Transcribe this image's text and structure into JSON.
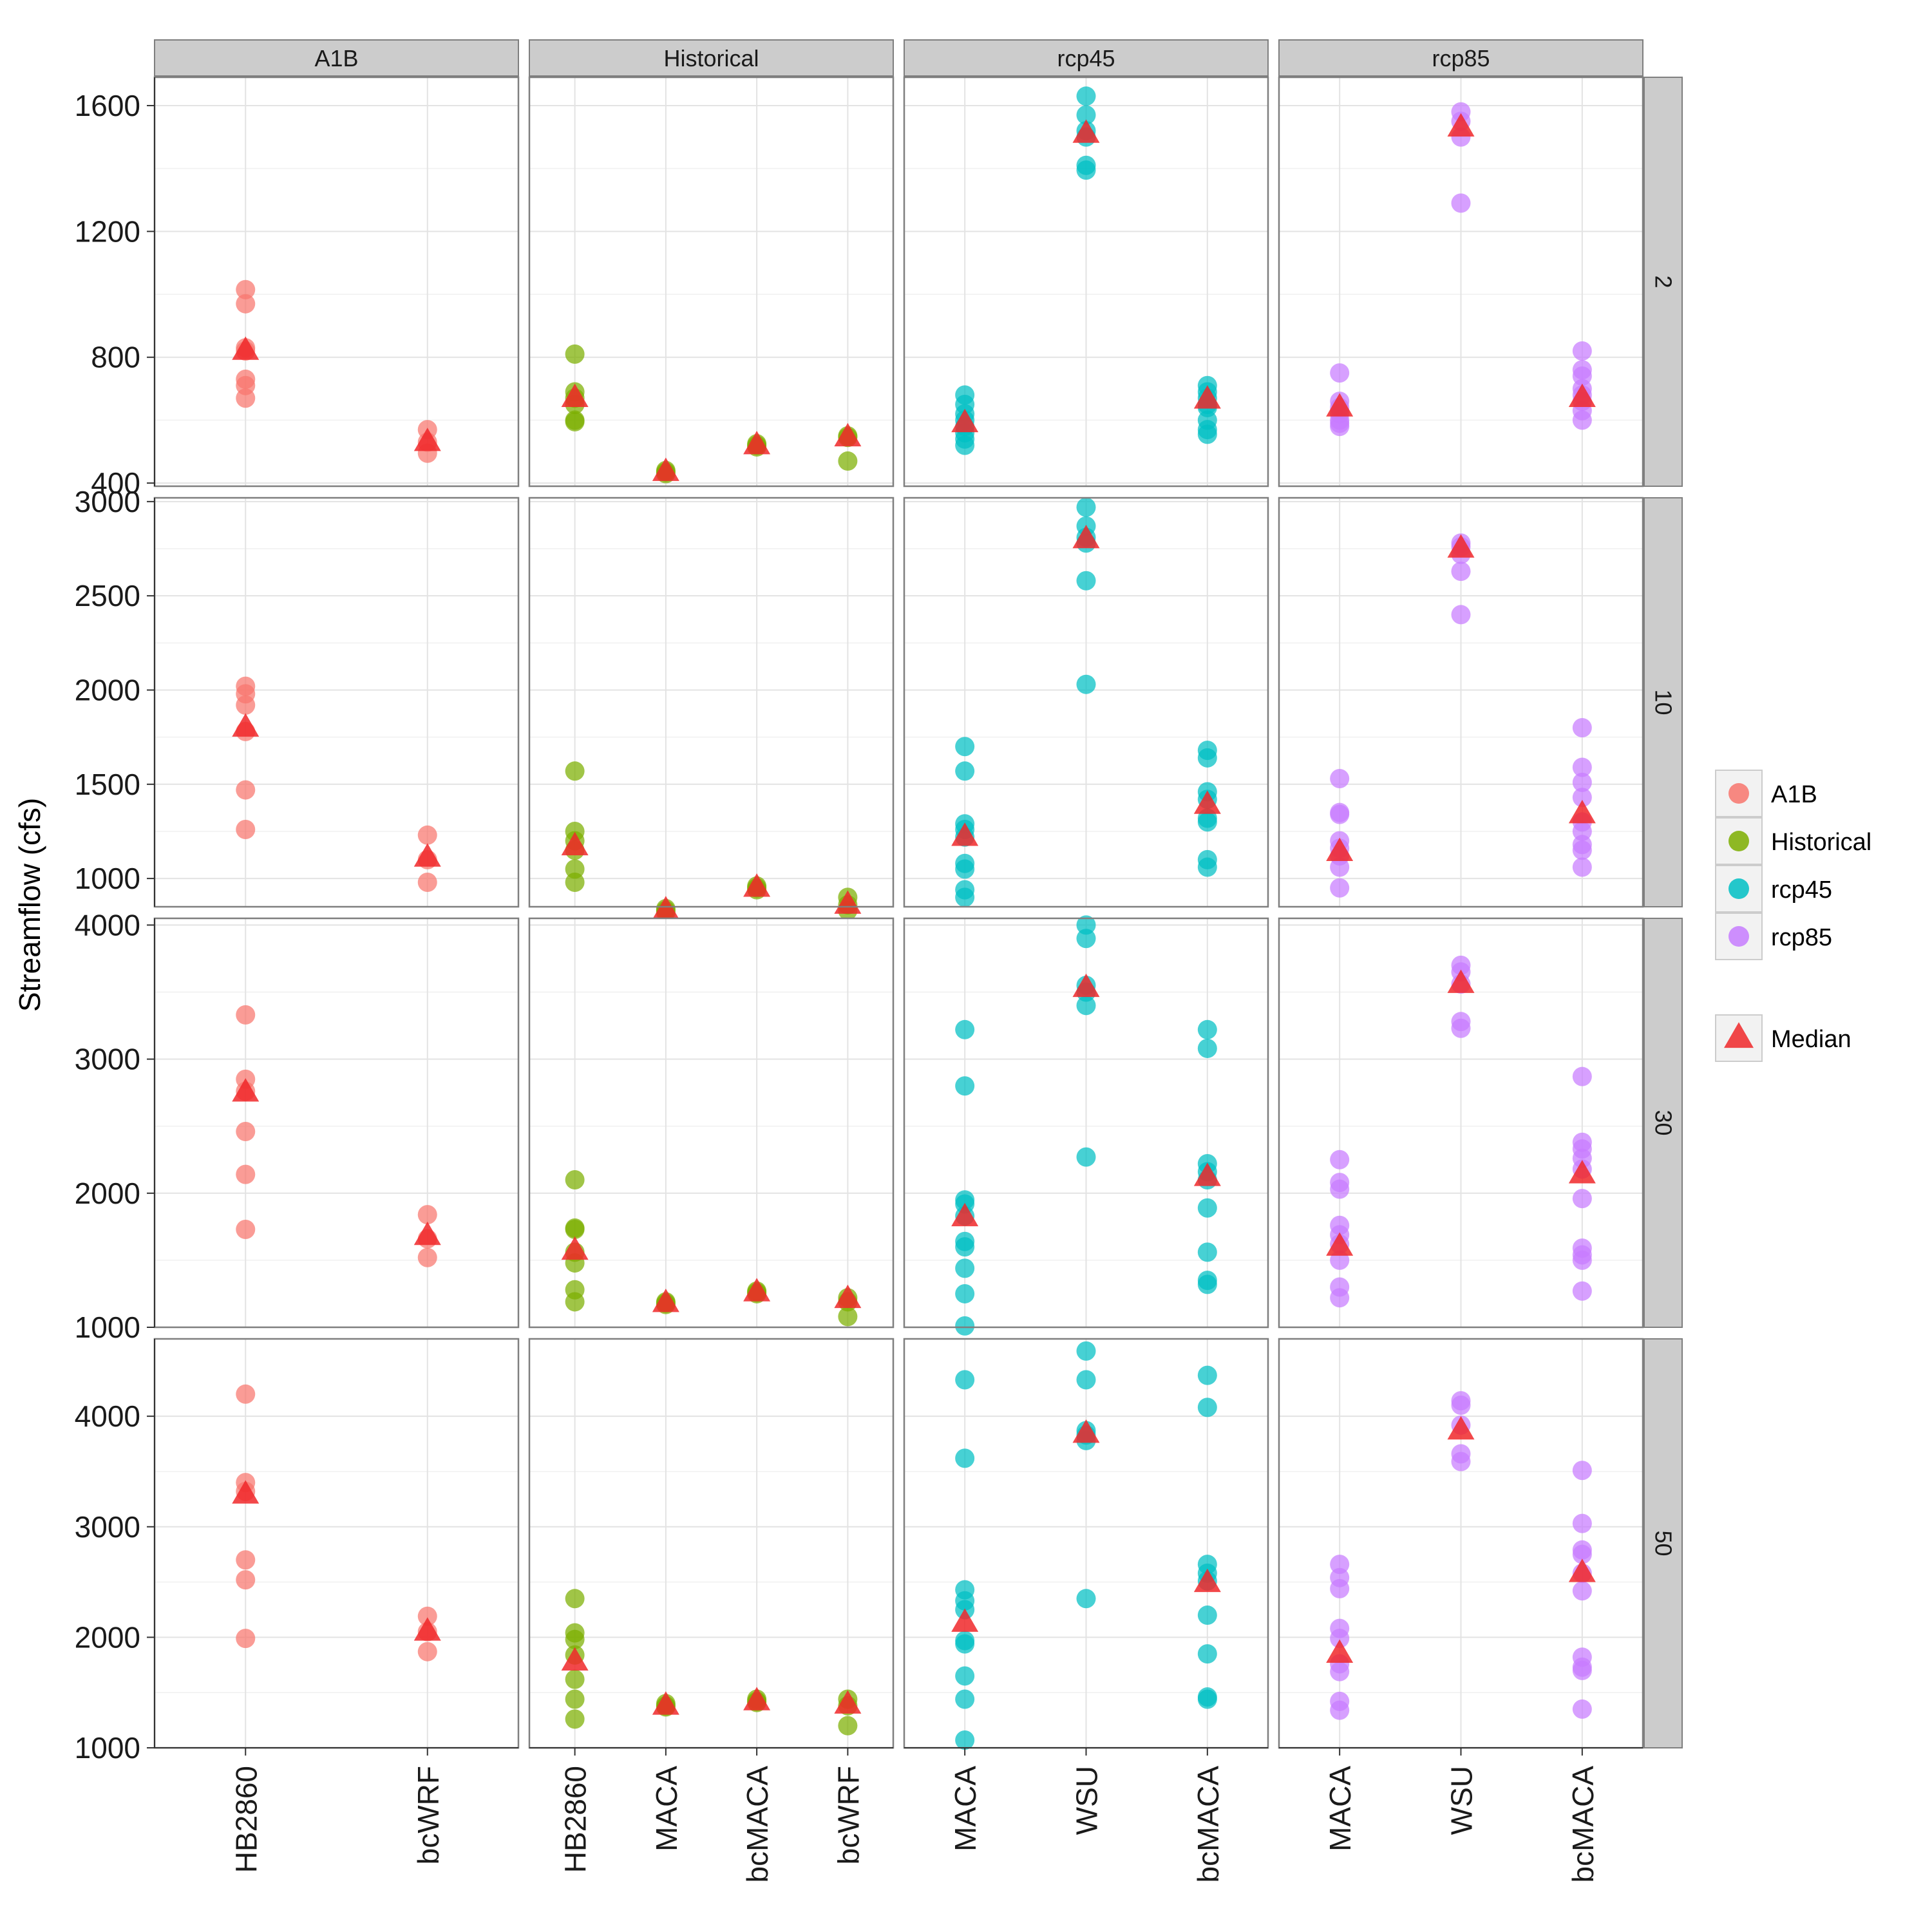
{
  "chart_data": {
    "type": "scatter",
    "ylabel": "Streamflow (cfs)",
    "column_facets": [
      "A1B",
      "Historical",
      "rcp45",
      "rcp85"
    ],
    "row_facets": [
      "2",
      "10",
      "30",
      "50"
    ],
    "column_categories": [
      [
        "HB2860",
        "bcWRF"
      ],
      [
        "HB2860",
        "MACA",
        "bcMACA",
        "bcWRF"
      ],
      [
        "MACA",
        "WSU",
        "bcMACA"
      ],
      [
        "MACA",
        "WSU",
        "bcMACA"
      ]
    ],
    "row_ylim": [
      [
        390,
        1690
      ],
      [
        850,
        3020
      ],
      [
        1000,
        4050
      ],
      [
        1000,
        4700
      ]
    ],
    "row_yticks": [
      [
        400,
        800,
        1200,
        1600
      ],
      [
        1000,
        1500,
        2000,
        2500,
        3000
      ],
      [
        1000,
        2000,
        3000,
        4000
      ],
      [
        1000,
        2000,
        3000,
        4000
      ]
    ],
    "grid": true,
    "legend": {
      "position": "right",
      "series": [
        {
          "name": "A1B",
          "color": "#F8766D"
        },
        {
          "name": "Historical",
          "color": "#7CAE00"
        },
        {
          "name": "rcp45",
          "color": "#00BFC4"
        },
        {
          "name": "rcp85",
          "color": "#C77CFF"
        }
      ],
      "median": {
        "name": "Median",
        "color": "#F0282A",
        "shape": "triangle"
      }
    },
    "panels": [
      {
        "row": "2",
        "col": "A1B",
        "points": {
          "HB2860": [
            1015,
            970,
            830,
            820,
            730,
            710,
            670
          ],
          "bcWRF": [
            570,
            530,
            495
          ]
        },
        "median": {
          "HB2860": 820,
          "bcWRF": 530
        }
      },
      {
        "row": "2",
        "col": "Historical",
        "points": {
          "HB2860": [
            810,
            690,
            670,
            650,
            600,
            595
          ],
          "MACA": [
            440,
            435,
            430
          ],
          "bcMACA": [
            525,
            520,
            515
          ],
          "bcWRF": [
            550,
            545,
            470
          ]
        },
        "median": {
          "HB2860": 670,
          "MACA": 435,
          "bcMACA": 520,
          "bcWRF": 545
        }
      },
      {
        "row": "2",
        "col": "rcp45",
        "points": {
          "MACA": [
            680,
            650,
            620,
            600,
            580,
            560,
            540,
            520
          ],
          "WSU": [
            1630,
            1570,
            1520,
            1500,
            1410,
            1395
          ],
          "bcMACA": [
            710,
            690,
            670,
            650,
            640,
            600,
            570,
            555
          ]
        },
        "median": {
          "MACA": 590,
          "WSU": 1510,
          "bcMACA": 665
        }
      },
      {
        "row": "2",
        "col": "rcp85",
        "points": {
          "MACA": [
            750,
            660,
            640,
            620,
            600,
            590,
            580
          ],
          "WSU": [
            1580,
            1550,
            1500,
            1290
          ],
          "bcMACA": [
            820,
            760,
            740,
            700,
            680,
            660,
            630,
            600
          ]
        },
        "median": {
          "MACA": 640,
          "WSU": 1530,
          "bcMACA": 670
        }
      },
      {
        "row": "10",
        "col": "A1B",
        "points": {
          "HB2860": [
            2020,
            1980,
            1920,
            1780,
            1470,
            1260
          ],
          "bcWRF": [
            1230,
            1100,
            980
          ]
        },
        "median": {
          "HB2860": 1800,
          "bcWRF": 1110
        }
      },
      {
        "row": "10",
        "col": "Historical",
        "points": {
          "HB2860": [
            1570,
            1250,
            1200,
            1150,
            1050,
            980
          ],
          "MACA": [
            840,
            830,
            820
          ],
          "bcMACA": [
            960,
            950,
            940
          ],
          "bcWRF": [
            900,
            860,
            830
          ]
        },
        "median": {
          "HB2860": 1170,
          "MACA": 830,
          "bcMACA": 950,
          "bcWRF": 860
        }
      },
      {
        "row": "10",
        "col": "rcp45",
        "points": {
          "MACA": [
            1700,
            1570,
            1290,
            1260,
            1220,
            1080,
            1050,
            940,
            900
          ],
          "WSU": [
            2970,
            2870,
            2810,
            2780,
            2580,
            2030
          ],
          "bcMACA": [
            1680,
            1640,
            1460,
            1420,
            1320,
            1300,
            1100,
            1060
          ]
        },
        "median": {
          "MACA": 1220,
          "WSU": 2800,
          "bcMACA": 1390
        }
      },
      {
        "row": "10",
        "col": "rcp85",
        "points": {
          "MACA": [
            1530,
            1350,
            1340,
            1200,
            1160,
            1120,
            1060,
            950
          ],
          "WSU": [
            2780,
            2760,
            2720,
            2630,
            2400
          ],
          "bcMACA": [
            1800,
            1590,
            1510,
            1430,
            1300,
            1250,
            1180,
            1150,
            1060
          ]
        },
        "median": {
          "MACA": 1140,
          "WSU": 2750,
          "bcMACA": 1340
        }
      },
      {
        "row": "30",
        "col": "A1B",
        "points": {
          "HB2860": [
            3330,
            2850,
            2760,
            2460,
            2140,
            1730
          ],
          "bcWRF": [
            1840,
            1660,
            1520
          ]
        },
        "median": {
          "HB2860": 2750,
          "bcWRF": 1680
        }
      },
      {
        "row": "30",
        "col": "Historical",
        "points": {
          "HB2860": [
            2100,
            1740,
            1730,
            1560,
            1480,
            1280,
            1190
          ],
          "MACA": [
            1190,
            1180,
            1170
          ],
          "bcMACA": [
            1270,
            1260,
            1250
          ],
          "bcWRF": [
            1220,
            1190,
            1080
          ]
        },
        "median": {
          "HB2860": 1570,
          "MACA": 1180,
          "bcMACA": 1260,
          "bcWRF": 1210
        }
      },
      {
        "row": "30",
        "col": "rcp45",
        "points": {
          "MACA": [
            3220,
            2800,
            1950,
            1920,
            1830,
            1640,
            1600,
            1440,
            1250,
            1010
          ],
          "WSU": [
            4000,
            3900,
            3550,
            3500,
            3400,
            2270
          ],
          "bcMACA": [
            3220,
            3080,
            2220,
            2160,
            2100,
            1890,
            1560,
            1350,
            1320
          ]
        },
        "median": {
          "MACA": 1820,
          "WSU": 3530,
          "bcMACA": 2120
        }
      },
      {
        "row": "30",
        "col": "rcp85",
        "points": {
          "MACA": [
            2250,
            2080,
            2030,
            1760,
            1690,
            1620,
            1500,
            1300,
            1220
          ],
          "WSU": [
            3700,
            3650,
            3560,
            3280,
            3230
          ],
          "bcMACA": [
            2870,
            2380,
            2330,
            2260,
            2180,
            1960,
            1590,
            1540,
            1500,
            1270
          ]
        },
        "median": {
          "MACA": 1600,
          "WSU": 3560,
          "bcMACA": 2140
        }
      },
      {
        "row": "50",
        "col": "A1B",
        "points": {
          "HB2860": [
            4200,
            3400,
            3320,
            2700,
            2520,
            1990
          ],
          "bcWRF": [
            2190,
            2050,
            1870
          ]
        },
        "median": {
          "HB2860": 3290,
          "bcWRF": 2050
        }
      },
      {
        "row": "50",
        "col": "Historical",
        "points": {
          "HB2860": [
            2350,
            2040,
            1980,
            1840,
            1620,
            1440,
            1260
          ],
          "MACA": [
            1400,
            1380,
            1370
          ],
          "bcMACA": [
            1440,
            1420,
            1410
          ],
          "bcWRF": [
            1440,
            1380,
            1200
          ]
        },
        "median": {
          "HB2860": 1780,
          "MACA": 1380,
          "bcMACA": 1420,
          "bcWRF": 1390
        }
      },
      {
        "row": "50",
        "col": "rcp45",
        "points": {
          "MACA": [
            4330,
            3620,
            2430,
            2330,
            2250,
            1970,
            1940,
            1650,
            1440,
            1070
          ],
          "WSU": [
            4590,
            4330,
            3870,
            3830,
            3780,
            2350
          ],
          "bcMACA": [
            4370,
            4080,
            2660,
            2580,
            2510,
            2200,
            1850,
            1460,
            1440
          ]
        },
        "median": {
          "MACA": 2130,
          "WSU": 3840,
          "bcMACA": 2490
        }
      },
      {
        "row": "50",
        "col": "rcp85",
        "points": {
          "MACA": [
            2660,
            2540,
            2440,
            2080,
            1990,
            1760,
            1690,
            1420,
            1340
          ],
          "WSU": [
            4140,
            4100,
            3920,
            3660,
            3590
          ],
          "bcMACA": [
            3510,
            3030,
            2790,
            2750,
            2580,
            2420,
            1820,
            1730,
            1700,
            1350
          ]
        },
        "median": {
          "MACA": 1850,
          "WSU": 3870,
          "bcMACA": 2580
        }
      }
    ]
  }
}
